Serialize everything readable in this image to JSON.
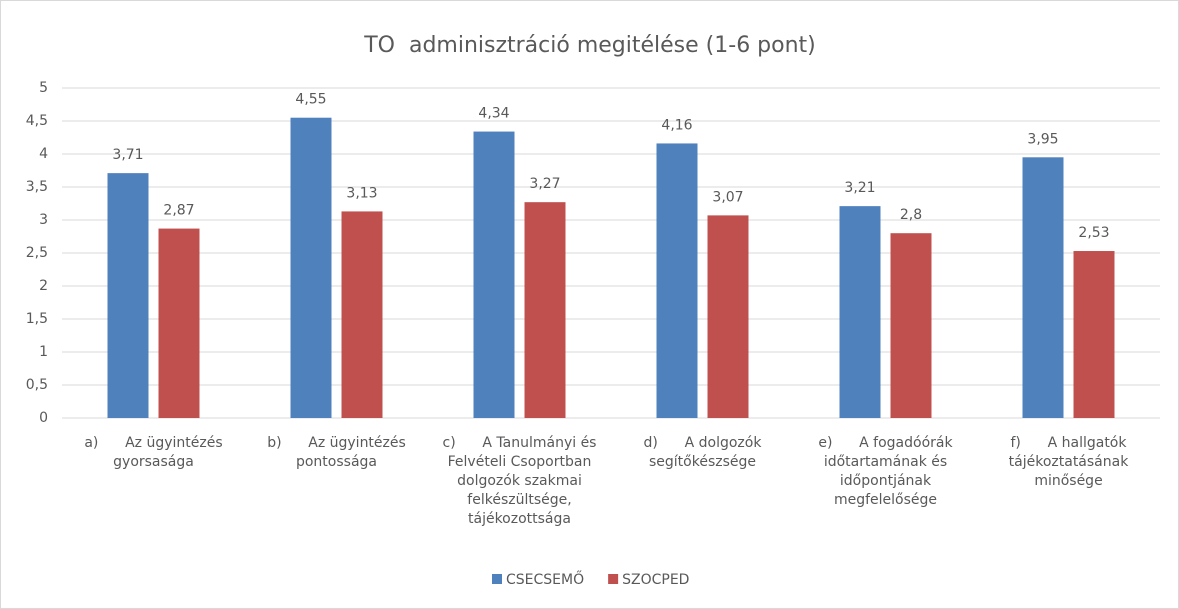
{
  "chart_data": {
    "type": "bar",
    "title": "TO  adminisztráció megitélése (1-6 pont)",
    "categories": [
      [
        "a)      Az ügyintézés",
        "gyorsasága"
      ],
      [
        "b)      Az ügyintézés",
        "pontossága"
      ],
      [
        "c)      A Tanulmányi és",
        "Felvételi Csoportban",
        "dolgozók szakmai",
        "felkészültsége,",
        "tájékozottsága"
      ],
      [
        "d)      A dolgozók",
        "segítőkészsége"
      ],
      [
        "e)      A fogadóórák",
        "időtartamának és",
        "időpontjának",
        "megfelelősége"
      ],
      [
        "f)      A hallgatók",
        "tájékoztatásának",
        "minősége"
      ]
    ],
    "series": [
      {
        "name": "CSECSEMŐ",
        "color": "#4f81bd",
        "values": [
          3.71,
          4.55,
          4.34,
          4.16,
          3.21,
          3.95
        ],
        "value_labels": [
          "3,71",
          "4,55",
          "4,34",
          "4,16",
          "3,21",
          "3,95"
        ]
      },
      {
        "name": "SZOCPED",
        "color": "#c0504d",
        "values": [
          2.87,
          3.13,
          3.27,
          3.07,
          2.8,
          2.53
        ],
        "value_labels": [
          "2,87",
          "3,13",
          "3,27",
          "3,07",
          "2,8",
          "2,53"
        ]
      }
    ],
    "ylim": [
      0,
      5
    ],
    "yticks": [
      0,
      {
        "value": 0.5,
        "label": "0,5"
      },
      1,
      {
        "value": 1.5,
        "label": "1,5"
      },
      2,
      {
        "value": 2.5,
        "label": "2,5"
      },
      3,
      {
        "value": 3.5,
        "label": "3,5"
      },
      4,
      {
        "value": 4.5,
        "label": "4,5"
      },
      5
    ],
    "grid": true,
    "legend": "bottom"
  }
}
